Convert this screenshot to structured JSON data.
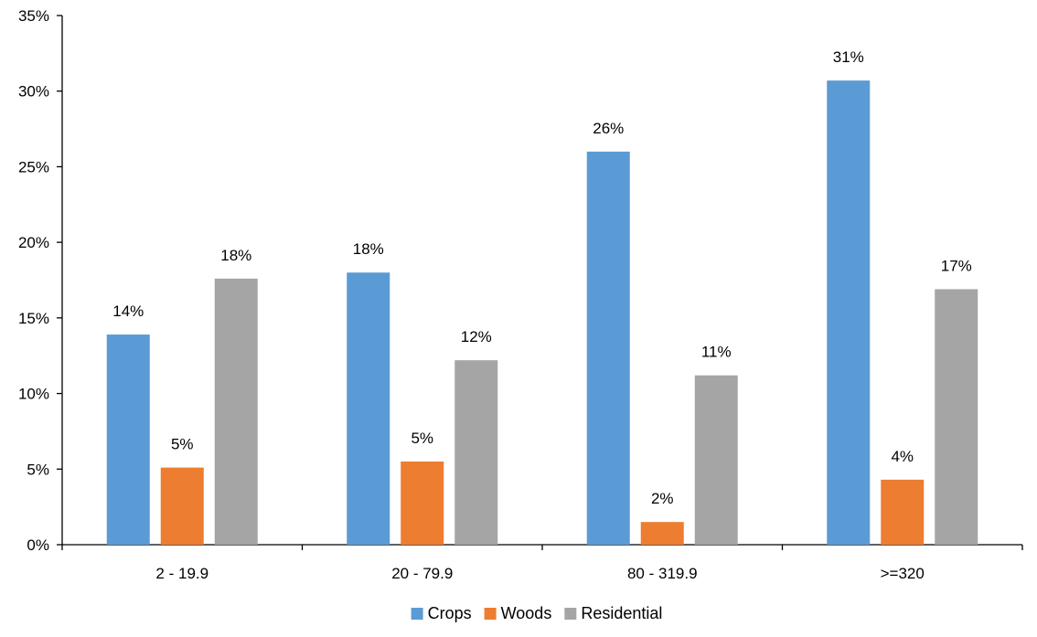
{
  "chart_data": {
    "type": "bar",
    "title": "",
    "xlabel": "",
    "ylabel": "",
    "categories": [
      "2 - 19.9",
      "20 - 79.9",
      "80 - 319.9",
      ">=320"
    ],
    "series": [
      {
        "name": "Crops",
        "color": "#5B9BD5",
        "values": [
          13.9,
          18.0,
          26.0,
          30.7
        ],
        "labels": [
          "14%",
          "18%",
          "26%",
          "31%"
        ]
      },
      {
        "name": "Woods",
        "color": "#ED7D31",
        "values": [
          5.1,
          5.5,
          1.5,
          4.3
        ],
        "labels": [
          "5%",
          "5%",
          "2%",
          "4%"
        ]
      },
      {
        "name": "Residential",
        "color": "#A5A5A5",
        "values": [
          17.6,
          12.2,
          11.2,
          16.9
        ],
        "labels": [
          "18%",
          "12%",
          "11%",
          "17%"
        ]
      }
    ],
    "ylim": [
      0,
      35
    ],
    "yticks": [
      {
        "value": 0,
        "label": "0%"
      },
      {
        "value": 5,
        "label": "5%"
      },
      {
        "value": 10,
        "label": "10%"
      },
      {
        "value": 15,
        "label": "15%"
      },
      {
        "value": 20,
        "label": "20%"
      },
      {
        "value": 25,
        "label": "25%"
      },
      {
        "value": 30,
        "label": "30%"
      },
      {
        "value": 35,
        "label": "35%"
      }
    ],
    "grid": false,
    "legend": "bottom-center"
  }
}
